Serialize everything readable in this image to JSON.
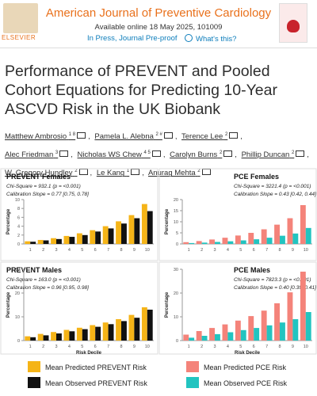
{
  "header": {
    "publisher": "ELSEVIER",
    "journal": "American Journal of Preventive Cardiology",
    "available": "Available online 18 May 2025, 101009",
    "status": "In Press, Journal Pre-proof",
    "help": "What's this?"
  },
  "article": {
    "title": "Performance of PREVENT and Pooled Cohort Equations for Predicting 10-Year ASCVD Risk in the UK Biobank",
    "authors": [
      {
        "name": "Matthew Ambrosio",
        "sup": "1 8"
      },
      {
        "name": "Pamela L. Alebna",
        "sup": "2 #"
      },
      {
        "name": "Terence Lee",
        "sup": "2"
      },
      {
        "name": "Alec Friedman",
        "sup": "3"
      },
      {
        "name": "Nicholas WS Chew",
        "sup": "4 5"
      },
      {
        "name": "Carolyn Burns",
        "sup": "2"
      },
      {
        "name": "Phillip Duncan",
        "sup": "2"
      },
      {
        "name": "W. Gregory Hundley",
        "sup": "2"
      },
      {
        "name": "Le Kang",
        "sup": "1"
      },
      {
        "name": "Anurag Mehta",
        "sup": "2"
      }
    ]
  },
  "figure": {
    "categories": [
      "1",
      "2",
      "3",
      "4",
      "5",
      "6",
      "7",
      "8",
      "9",
      "10"
    ],
    "y_label": "Percentage",
    "x_label": "Risk Decile",
    "legend": [
      {
        "name": "Mean Predicted PREVENT Risk",
        "color": "#f5b417"
      },
      {
        "name": "Mean Observed PREVENT Risk",
        "color": "#111111"
      },
      {
        "name": "Mean Predicted PCE Risk",
        "color": "#f4837a"
      },
      {
        "name": "Mean Observed PCE Risk",
        "color": "#22c4c0"
      }
    ],
    "panels": [
      {
        "title": "PREVENT Females",
        "stats": [
          "Chi-Square = 932.1 (p = <0.001)",
          "Calibration Slope = 0.77 [0.75, 0.78]"
        ],
        "ylim": [
          0,
          10
        ],
        "yticks": [
          0,
          2,
          4,
          6,
          8,
          10
        ],
        "series": [
          {
            "values": [
              0.6,
              0.9,
              1.3,
              1.8,
              2.4,
              3.1,
              4.0,
              5.1,
              6.5,
              9.0
            ]
          },
          {
            "values": [
              0.5,
              0.8,
              1.1,
              1.6,
              2.0,
              2.8,
              3.5,
              4.6,
              5.8,
              7.4
            ]
          }
        ]
      },
      {
        "title": "PCE Females",
        "stats": [
          "Chi-Square = 3221.4 (p = <0.001)",
          "Calibration Slope = 0.43 [0.42, 0.44]"
        ],
        "ylim": [
          0,
          20
        ],
        "yticks": [
          0,
          5,
          10,
          15,
          20
        ],
        "series": [
          {
            "values": [
              0.8,
              1.3,
              2.0,
              2.8,
              3.8,
              5.0,
              6.6,
              8.7,
              11.6,
              17.5
            ]
          },
          {
            "values": [
              0.4,
              0.6,
              0.9,
              1.2,
              1.6,
              2.1,
              2.8,
              3.7,
              4.7,
              7.2
            ]
          }
        ]
      },
      {
        "title": "PREVENT Males",
        "stats": [
          "Chi-Square = 163.0 (p = <0.001)",
          "Calibration Slope = 0.96 [0.95, 0.98]"
        ],
        "ylim": [
          0,
          30
        ],
        "yticks": [
          0,
          10,
          20,
          30
        ],
        "series": [
          {
            "values": [
              1.8,
              2.8,
              3.6,
              4.5,
              5.4,
              6.5,
              7.6,
              9.0,
              10.8,
              14.0
            ]
          },
          {
            "values": [
              1.4,
              2.2,
              3.0,
              3.9,
              4.8,
              5.8,
              6.9,
              8.2,
              9.6,
              13.0
            ]
          }
        ]
      },
      {
        "title": "PCE Males",
        "stats": [
          "Chi-Square = 7823.3 (p = <0.001)",
          "Calibration Slope = 0.40 [0.39, 0.41]"
        ],
        "ylim": [
          0,
          30
        ],
        "yticks": [
          0,
          10,
          20,
          30
        ],
        "series": [
          {
            "values": [
              2.5,
              4.0,
              5.3,
              6.8,
              8.4,
              10.3,
              12.6,
              15.7,
              20.3,
              29.0
            ]
          },
          {
            "values": [
              1.2,
              2.0,
              2.7,
              3.5,
              4.4,
              5.3,
              6.4,
              7.6,
              9.0,
              12.0
            ]
          }
        ]
      }
    ]
  }
}
